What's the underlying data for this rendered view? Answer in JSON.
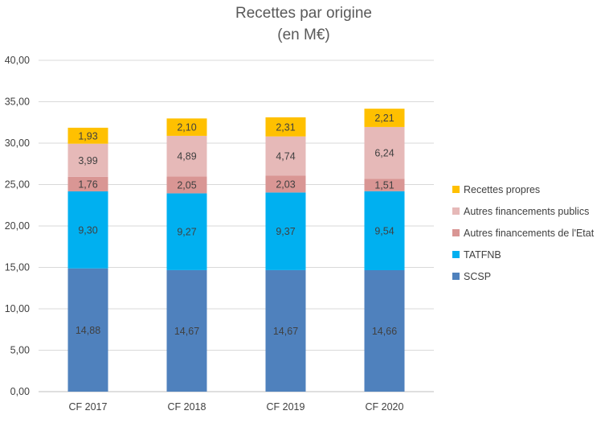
{
  "chart_data": {
    "type": "bar",
    "stacked": true,
    "title": "Recettes par origine",
    "subtitle": "(en M€)",
    "xlabel": "",
    "ylabel": "",
    "ylim": [
      0,
      40
    ],
    "y_ticks": [
      {
        "value": 0,
        "label": "0,00"
      },
      {
        "value": 5,
        "label": "5,00"
      },
      {
        "value": 10,
        "label": "10,00"
      },
      {
        "value": 15,
        "label": "15,00"
      },
      {
        "value": 20,
        "label": "20,00"
      },
      {
        "value": 25,
        "label": "25,00"
      },
      {
        "value": 30,
        "label": "30,00"
      },
      {
        "value": 35,
        "label": "35,00"
      },
      {
        "value": 40,
        "label": "40,00"
      }
    ],
    "grid": true,
    "legend_position": "right",
    "categories": [
      "CF 2017",
      "CF 2018",
      "CF 2019",
      "CF 2020"
    ],
    "series": [
      {
        "name": "SCSP",
        "color": "#4f81bd",
        "values": [
          14.88,
          14.67,
          14.67,
          14.66
        ],
        "labels": [
          "14,88",
          "14,67",
          "14,67",
          "14,66"
        ]
      },
      {
        "name": "TATFNB",
        "color": "#00b0f0",
        "values": [
          9.3,
          9.27,
          9.37,
          9.54
        ],
        "labels": [
          "9,30",
          "9,27",
          "9,37",
          "9,54"
        ]
      },
      {
        "name": "Autres financements de l'Etat",
        "color": "#d99694",
        "values": [
          1.76,
          2.05,
          2.03,
          1.51
        ],
        "labels": [
          "1,76",
          "2,05",
          "2,03",
          "1,51"
        ]
      },
      {
        "name": "Autres financements publics",
        "color": "#e6b9b8",
        "values": [
          3.99,
          4.89,
          4.74,
          6.24
        ],
        "labels": [
          "3,99",
          "4,89",
          "4,74",
          "6,24"
        ]
      },
      {
        "name": "Recettes propres",
        "color": "#ffc000",
        "values": [
          1.93,
          2.1,
          2.31,
          2.21
        ],
        "labels": [
          "1,93",
          "2,10",
          "2,31",
          "2,21"
        ]
      }
    ],
    "legend_order": [
      "Recettes propres",
      "Autres financements publics",
      "Autres financements de l'Etat",
      "TATFNB",
      "SCSP"
    ]
  }
}
